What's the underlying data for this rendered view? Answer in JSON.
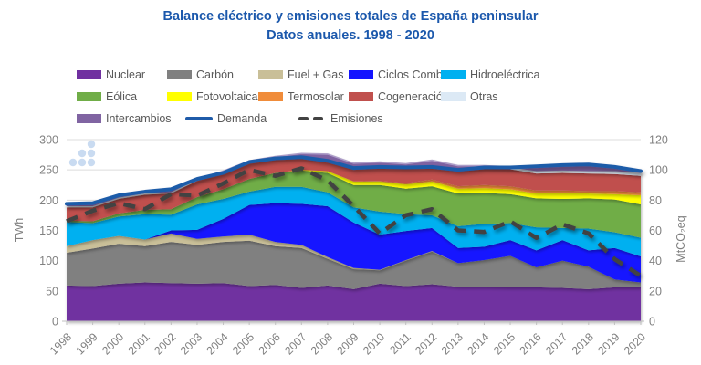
{
  "title": {
    "line1": "Balance eléctrico y emisiones totales de España peninsular",
    "line2": "Datos anuales. 1998 - 2020"
  },
  "axes": {
    "left": {
      "title": "TWh",
      "ticks": [
        0,
        50,
        100,
        150,
        200,
        250,
        300
      ]
    },
    "right": {
      "title": "MtCO₂eq",
      "ticks": [
        0,
        20,
        40,
        60,
        80,
        100,
        120
      ]
    }
  },
  "watermark": {
    "name": "dots-logo",
    "color": "#C9DBF1"
  },
  "colors": {
    "title": "#1B58AC",
    "legend_text": "#595959",
    "axis_text": "#808080",
    "gridline": "#DCDCDC",
    "axis_line": "#C0C0C0"
  },
  "chart_data": {
    "type": "area",
    "stacked": true,
    "title": "Balance eléctrico y emisiones totales de España peninsular",
    "subtitle": "Datos anuales. 1998 - 2020",
    "xlabel": "",
    "ylabel_left": "TWh",
    "ylabel_right": "MtCO₂eq",
    "ylim_left": [
      0,
      300
    ],
    "ylim_right": [
      0,
      120
    ],
    "grid": true,
    "legend_position": "top",
    "x": [
      1998,
      1999,
      2000,
      2001,
      2002,
      2003,
      2004,
      2005,
      2006,
      2007,
      2008,
      2009,
      2010,
      2011,
      2012,
      2013,
      2014,
      2015,
      2016,
      2017,
      2018,
      2019,
      2020
    ],
    "series": [
      {
        "name": "Nuclear",
        "type": "stacked-area",
        "color": "#7030A0",
        "values": [
          59,
          58,
          62,
          64,
          63,
          62,
          63,
          58,
          60,
          55,
          59,
          53,
          62,
          58,
          61,
          57,
          57,
          56,
          56,
          55,
          53,
          56,
          56
        ]
      },
      {
        "name": "Carbón",
        "type": "stacked-area",
        "color": "#808080",
        "values": [
          54,
          62,
          66,
          60,
          68,
          64,
          68,
          75,
          64,
          66,
          44,
          33,
          22,
          42,
          54,
          39,
          44,
          52,
          33,
          45,
          37,
          13,
          8
        ]
      },
      {
        "name": "Fuel + Gas",
        "type": "stacked-area",
        "color": "#C9BF98",
        "values": [
          11,
          14,
          13,
          11,
          14,
          10,
          9,
          10,
          7,
          5,
          3,
          2,
          1,
          1,
          1,
          0,
          0,
          0,
          0,
          0,
          0,
          0,
          0
        ]
      },
      {
        "name": "Ciclos Comb.",
        "type": "stacked-area",
        "color": "#1414FF",
        "values": [
          0,
          0,
          0,
          0,
          5,
          15,
          29,
          49,
          64,
          68,
          84,
          75,
          58,
          48,
          38,
          25,
          22,
          26,
          28,
          34,
          27,
          52,
          43
        ]
      },
      {
        "name": "Hidroeléctrica",
        "type": "stacked-area",
        "color": "#00B0F0",
        "values": [
          40,
          28,
          32,
          42,
          26,
          42,
          33,
          22,
          27,
          28,
          23,
          25,
          38,
          28,
          21,
          36,
          38,
          28,
          38,
          20,
          36,
          26,
          31
        ]
      },
      {
        "name": "Eólica",
        "type": "stacked-area",
        "color": "#70AD47",
        "values": [
          2,
          3,
          5,
          7,
          9,
          12,
          16,
          21,
          23,
          27,
          32,
          37,
          44,
          42,
          48,
          54,
          51,
          48,
          48,
          48,
          50,
          54,
          55
        ]
      },
      {
        "name": "Fotovoltaica",
        "type": "stacked-area",
        "color": "#FFFF00",
        "values": [
          0,
          0,
          0,
          0,
          0,
          0,
          0,
          0,
          0,
          1,
          3,
          6,
          6,
          7,
          8,
          8,
          8,
          8,
          8,
          9,
          8,
          9,
          15
        ]
      },
      {
        "name": "Termosolar",
        "type": "stacked-area",
        "color": "#F08C3A",
        "values": [
          0,
          0,
          0,
          0,
          0,
          0,
          0,
          0,
          0,
          0,
          0,
          0,
          1,
          2,
          3,
          4,
          5,
          5,
          5,
          5,
          4,
          5,
          5
        ]
      },
      {
        "name": "Cogeneración",
        "type": "stacked-area",
        "color": "#C0504D",
        "values": [
          22,
          23,
          24,
          25,
          26,
          27,
          28,
          28,
          25,
          25,
          26,
          27,
          28,
          29,
          28,
          30,
          28,
          28,
          28,
          29,
          29,
          28,
          27
        ]
      },
      {
        "name": "Otras",
        "type": "stacked-area",
        "color": "#DCE9F5",
        "values": [
          2,
          2,
          2,
          2,
          2,
          2,
          2,
          2,
          2,
          2,
          2,
          3,
          3,
          3,
          4,
          4,
          4,
          4,
          4,
          4,
          4,
          5,
          5
        ]
      },
      {
        "name": "Intercambios",
        "type": "net-band",
        "color": "#8064A2",
        "edge": "#AD9DC8",
        "values": [
          4,
          5,
          4,
          3,
          5,
          1,
          -3,
          -2,
          -3,
          -6,
          -11,
          -8,
          -8,
          -6,
          -11,
          -7,
          -3,
          -1,
          8,
          9,
          11,
          7,
          3
        ]
      },
      {
        "name": "Demanda",
        "type": "line",
        "color": "#1F5BA9",
        "values": [
          194,
          195,
          208,
          214,
          218,
          235,
          245,
          263,
          269,
          271,
          265,
          253,
          255,
          254,
          255,
          250,
          254,
          254,
          256,
          258,
          259,
          255,
          248
        ]
      },
      {
        "name": "Emisiones",
        "type": "dashed-line",
        "axis": "right",
        "color": "#424242",
        "values": [
          66,
          73,
          78,
          74,
          84,
          83,
          91,
          100,
          96,
          101,
          93,
          76,
          58,
          70,
          74,
          60,
          59,
          66,
          55,
          64,
          58,
          41,
          30
        ]
      }
    ]
  }
}
